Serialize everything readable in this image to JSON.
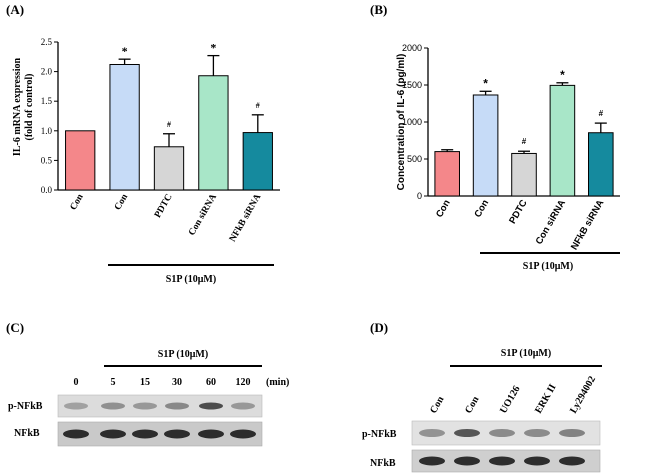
{
  "panels": {
    "A": "(A)",
    "B": "(B)",
    "C": "(C)",
    "D": "(D)"
  },
  "treatment_label": "S1P (10μM)",
  "chart_data": [
    {
      "id": "A",
      "type": "bar",
      "ylabel": [
        "IL-6 mRNA expression",
        "(fold of control)"
      ],
      "ylim": [
        0,
        2.5
      ],
      "yticks": [
        "0.0",
        "0.5",
        "1.0",
        "1.5",
        "2.0",
        "2.5"
      ],
      "categories": [
        "Con",
        "Con",
        "PDTC",
        "Con siRNA",
        "NFkB siRNA"
      ],
      "values": [
        1.0,
        2.12,
        0.73,
        1.93,
        0.97
      ],
      "errors": [
        0.0,
        0.09,
        0.22,
        0.34,
        0.3
      ],
      "marks": [
        "",
        "*",
        "#",
        "*",
        "#"
      ],
      "colors": [
        "#f4878a",
        "#c6dbf7",
        "#d6d6d6",
        "#a8e6c8",
        "#158a9e"
      ],
      "grid": false
    },
    {
      "id": "B",
      "type": "bar",
      "ylabel": [
        "Concentration of IL-6 (pg/ml)"
      ],
      "ylim": [
        0,
        2000
      ],
      "yticks": [
        "0",
        "500",
        "1000",
        "1500",
        "2000"
      ],
      "categories": [
        "Con",
        "Con",
        "PDTC",
        "Con siRNA",
        "NFkB siRNA"
      ],
      "values": [
        600,
        1365,
        575,
        1495,
        855
      ],
      "errors": [
        25,
        50,
        30,
        35,
        130
      ],
      "marks": [
        "",
        "*",
        "#",
        "*",
        "#"
      ],
      "colors": [
        "#f4878a",
        "#c6dbf7",
        "#d6d6d6",
        "#a8e6c8",
        "#158a9e"
      ],
      "grid": false
    }
  ],
  "blot_c": {
    "lanes": [
      "0",
      "5",
      "15",
      "30",
      "60",
      "120"
    ],
    "unit": "(min)",
    "rows": [
      "p-NFkB",
      "NFkB"
    ]
  },
  "blot_d": {
    "lanes": [
      "Con",
      "Con",
      "UO126",
      "ERK II",
      "Ly294002"
    ],
    "rows": [
      "p-NFkB",
      "NFkB"
    ]
  }
}
